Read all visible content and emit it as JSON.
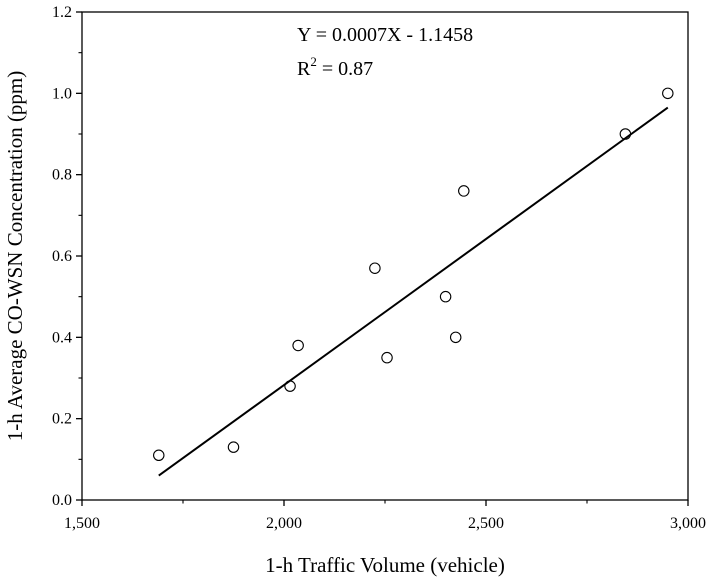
{
  "chart_data": {
    "type": "scatter",
    "title": "",
    "xlabel": "1-h Traffic Volume (vehicle)",
    "ylabel": "1-h Average CO-WSN Concentration (ppm)",
    "xlim": [
      1500,
      3000
    ],
    "ylim": [
      0,
      1.2
    ],
    "xticks": [
      1500,
      2000,
      2500,
      3000
    ],
    "xtick_labels": [
      "1,500",
      "2,000",
      "2,500",
      "3,000"
    ],
    "yticks": [
      0.0,
      0.2,
      0.4,
      0.6,
      0.8,
      1.0,
      1.2
    ],
    "ytick_labels": [
      "0.0",
      "0.2",
      "0.4",
      "0.6",
      "0.8",
      "1.0",
      "1.2"
    ],
    "grid": false,
    "points": [
      {
        "x": 1690,
        "y": 0.11
      },
      {
        "x": 1875,
        "y": 0.13
      },
      {
        "x": 2015,
        "y": 0.28
      },
      {
        "x": 2035,
        "y": 0.38
      },
      {
        "x": 2225,
        "y": 0.57
      },
      {
        "x": 2255,
        "y": 0.35
      },
      {
        "x": 2400,
        "y": 0.5
      },
      {
        "x": 2425,
        "y": 0.4
      },
      {
        "x": 2445,
        "y": 0.76
      },
      {
        "x": 2845,
        "y": 0.9
      },
      {
        "x": 2950,
        "y": 1.0
      }
    ],
    "fit_line": {
      "x": [
        1690,
        2950
      ],
      "y": [
        0.06,
        0.965
      ]
    },
    "equation": "Y = 0.0007X - 1.1458",
    "r2_prefix": "R",
    "r2_superscript": "2",
    "r2_suffix": " = 0.87"
  }
}
